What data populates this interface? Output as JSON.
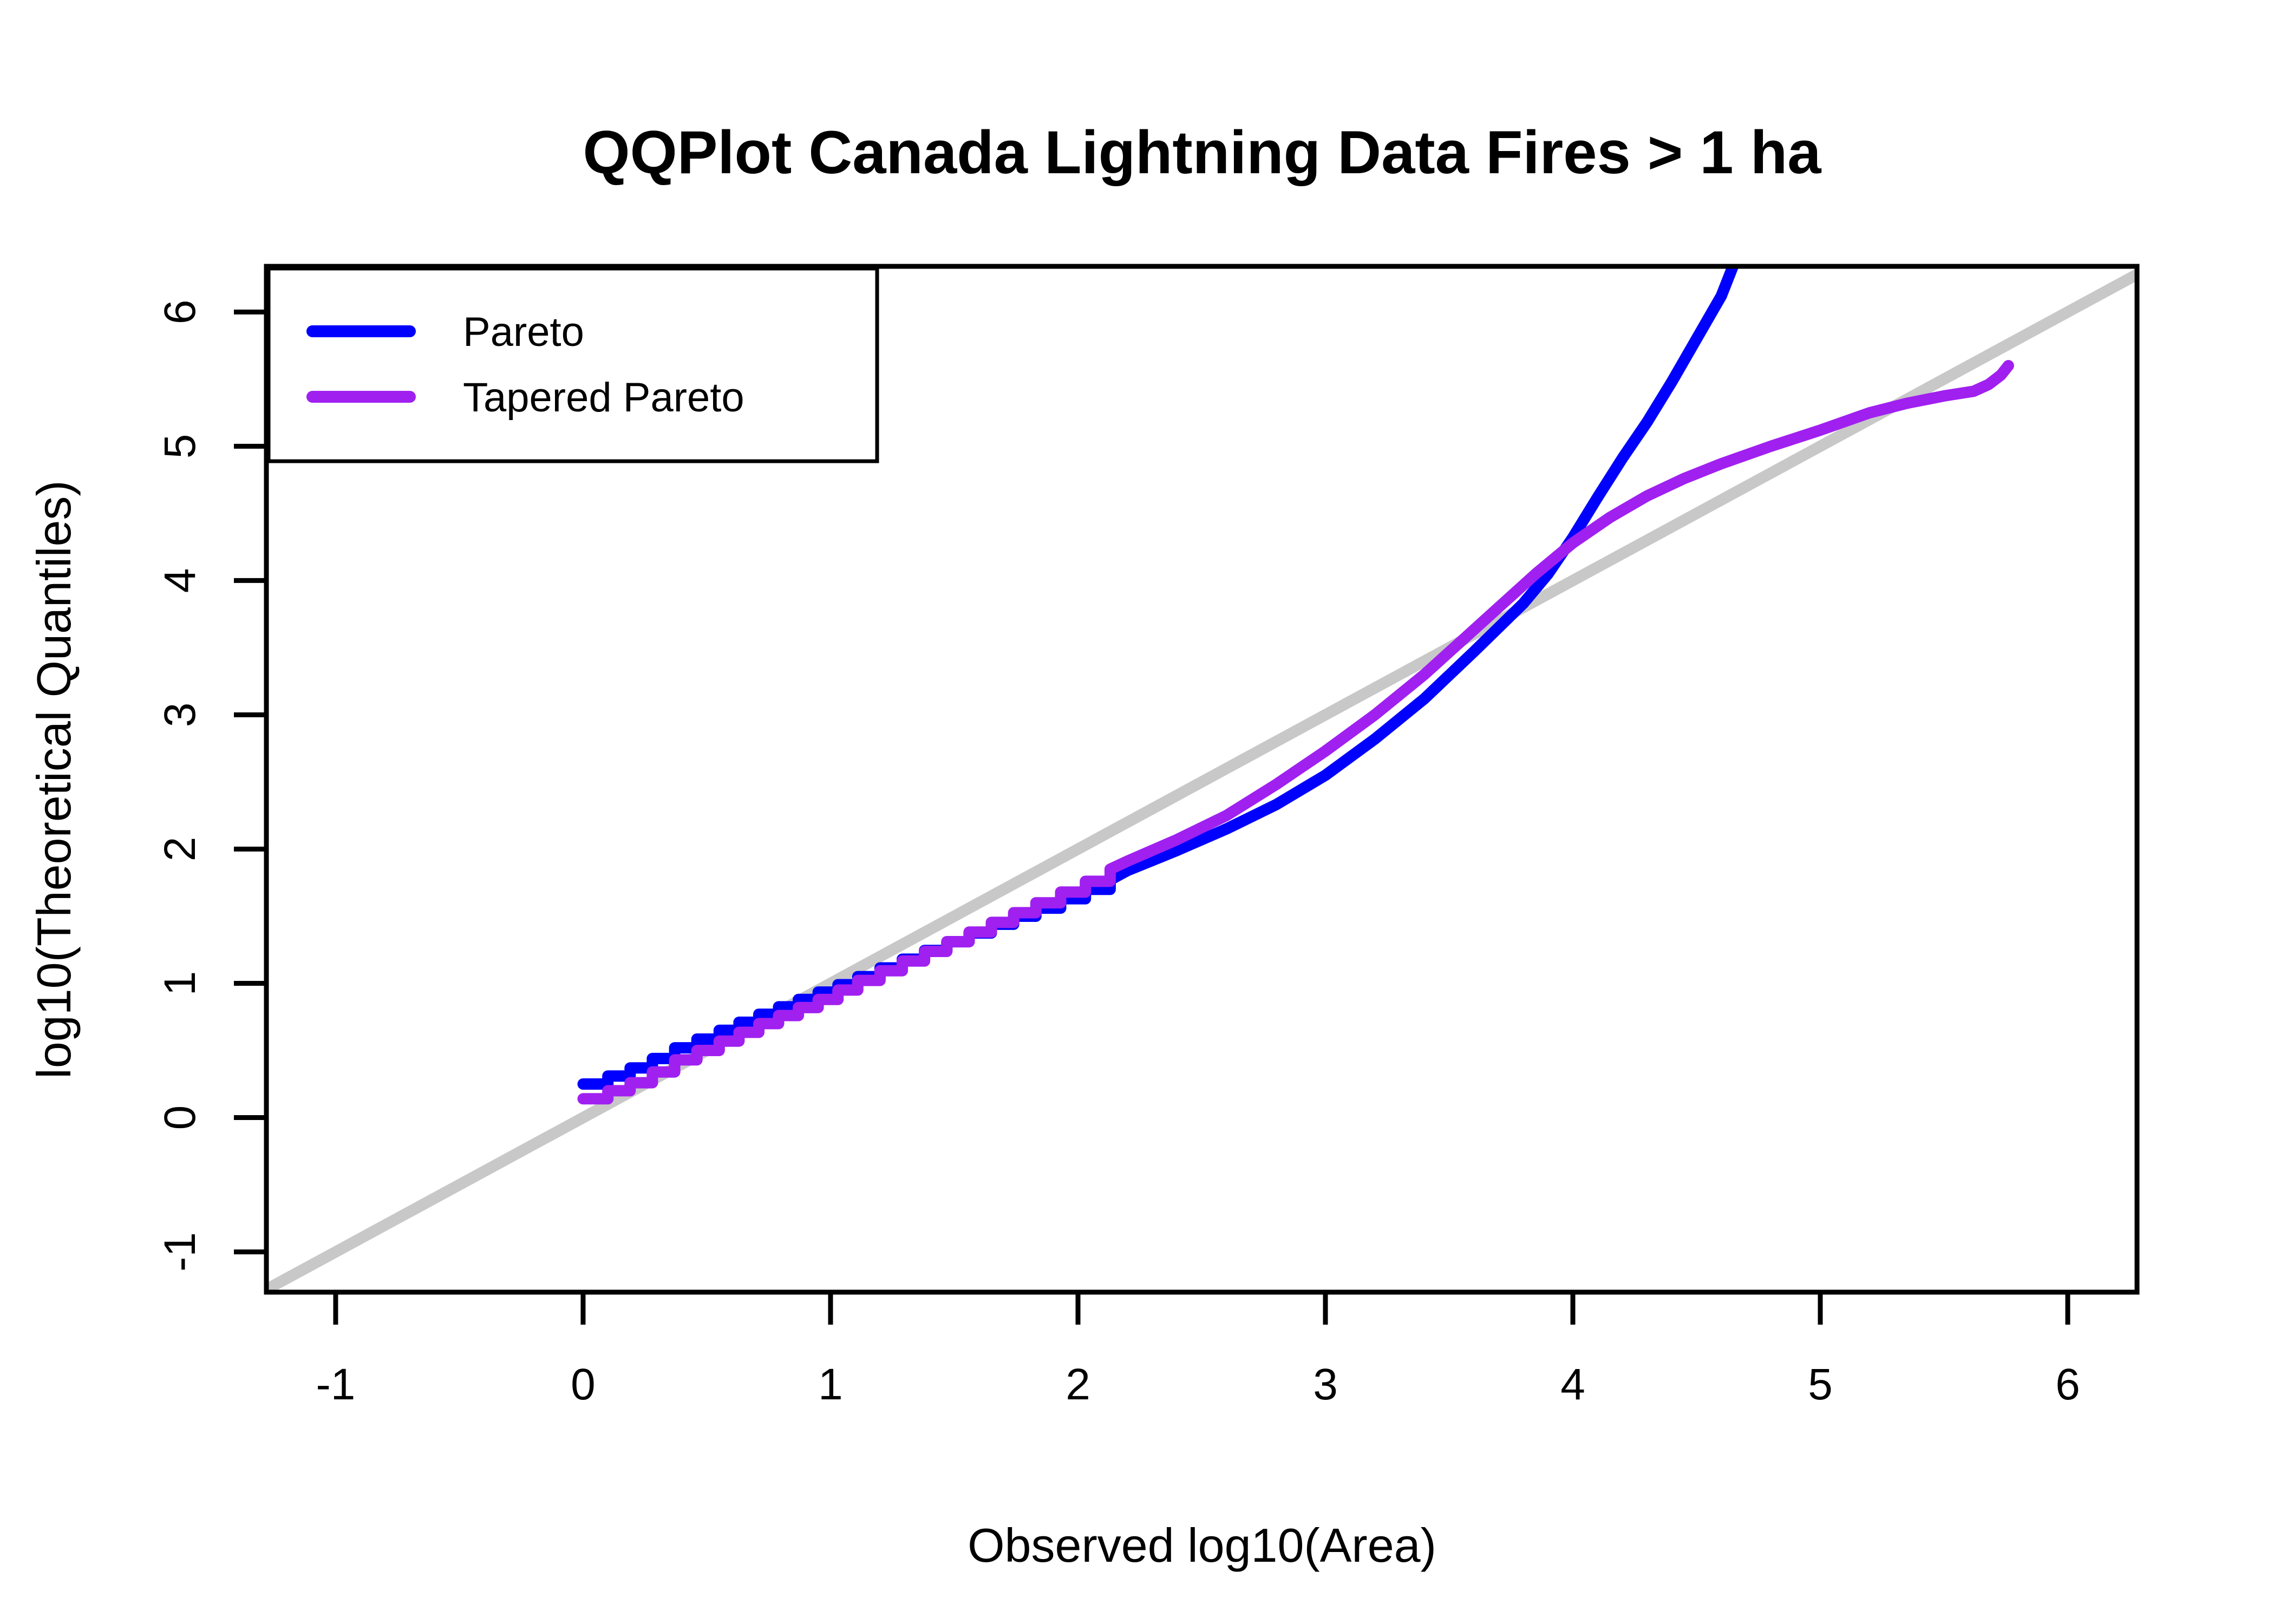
{
  "title": "QQPlot Canada Lightning Data Fires > 1 ha",
  "colors": {
    "pareto": "#0000FF",
    "tapered_pareto": "#A020F0",
    "reference_line": "#C8C8C8",
    "axis": "#000000",
    "background": "#FFFFFF"
  },
  "legend": {
    "position": "top-left",
    "items": [
      {
        "label": "Pareto",
        "color": "#0000FF"
      },
      {
        "label": "Tapered Pareto",
        "color": "#A020F0"
      }
    ]
  },
  "chart_data": {
    "type": "line",
    "title": "QQPlot Canada Lightning Data Fires > 1 ha",
    "xlabel": "Observed log10(Area)",
    "ylabel": "log10(Theoretical Quantiles)",
    "x_ticks": [
      -1,
      0,
      1,
      2,
      3,
      4,
      5,
      6
    ],
    "y_ticks": [
      -1,
      0,
      1,
      2,
      3,
      4,
      5,
      6
    ],
    "xlim": [
      -1.28,
      6.28
    ],
    "ylim": [
      -1.3,
      6.34
    ],
    "grid": false,
    "legend_position": "top-left",
    "reference_line": {
      "label": "y = x",
      "slope": 1,
      "intercept": 0,
      "color": "#C8C8C8"
    },
    "series": [
      {
        "name": "Pareto",
        "color": "#0000FF",
        "points": [
          [
            0.0,
            0.25
          ],
          [
            0.1,
            0.25
          ],
          [
            0.1,
            0.31
          ],
          [
            0.19,
            0.31
          ],
          [
            0.19,
            0.37
          ],
          [
            0.28,
            0.37
          ],
          [
            0.28,
            0.44
          ],
          [
            0.37,
            0.44
          ],
          [
            0.37,
            0.52
          ],
          [
            0.46,
            0.52
          ],
          [
            0.46,
            0.585
          ],
          [
            0.55,
            0.585
          ],
          [
            0.55,
            0.65
          ],
          [
            0.63,
            0.65
          ],
          [
            0.63,
            0.71
          ],
          [
            0.71,
            0.71
          ],
          [
            0.71,
            0.77
          ],
          [
            0.79,
            0.77
          ],
          [
            0.79,
            0.825
          ],
          [
            0.87,
            0.825
          ],
          [
            0.87,
            0.88
          ],
          [
            0.95,
            0.88
          ],
          [
            0.95,
            0.935
          ],
          [
            1.03,
            0.935
          ],
          [
            1.03,
            0.99
          ],
          [
            1.11,
            0.99
          ],
          [
            1.11,
            1.05
          ],
          [
            1.2,
            1.05
          ],
          [
            1.2,
            1.115
          ],
          [
            1.29,
            1.115
          ],
          [
            1.29,
            1.18
          ],
          [
            1.38,
            1.18
          ],
          [
            1.38,
            1.245
          ],
          [
            1.47,
            1.245
          ],
          [
            1.47,
            1.31
          ],
          [
            1.56,
            1.31
          ],
          [
            1.56,
            1.375
          ],
          [
            1.65,
            1.375
          ],
          [
            1.65,
            1.44
          ],
          [
            1.74,
            1.44
          ],
          [
            1.74,
            1.5
          ],
          [
            1.83,
            1.5
          ],
          [
            1.83,
            1.56
          ],
          [
            1.93,
            1.56
          ],
          [
            1.93,
            1.63
          ],
          [
            2.03,
            1.63
          ],
          [
            2.03,
            1.7
          ],
          [
            2.13,
            1.7
          ],
          [
            2.13,
            1.77
          ],
          [
            2.2,
            1.84
          ],
          [
            2.4,
            1.99
          ],
          [
            2.6,
            2.15
          ],
          [
            2.8,
            2.33
          ],
          [
            3.0,
            2.55
          ],
          [
            3.2,
            2.82
          ],
          [
            3.4,
            3.12
          ],
          [
            3.6,
            3.47
          ],
          [
            3.8,
            3.83
          ],
          [
            3.9,
            4.05
          ],
          [
            4.0,
            4.32
          ],
          [
            4.1,
            4.62
          ],
          [
            4.2,
            4.91
          ],
          [
            4.3,
            5.18
          ],
          [
            4.4,
            5.48
          ],
          [
            4.5,
            5.8
          ],
          [
            4.6,
            6.12
          ],
          [
            4.66,
            6.4
          ]
        ]
      },
      {
        "name": "Tapered Pareto",
        "color": "#A020F0",
        "points": [
          [
            0.0,
            0.14
          ],
          [
            0.1,
            0.14
          ],
          [
            0.1,
            0.2
          ],
          [
            0.19,
            0.2
          ],
          [
            0.19,
            0.26
          ],
          [
            0.28,
            0.26
          ],
          [
            0.28,
            0.34
          ],
          [
            0.37,
            0.34
          ],
          [
            0.37,
            0.43
          ],
          [
            0.46,
            0.43
          ],
          [
            0.46,
            0.5
          ],
          [
            0.55,
            0.5
          ],
          [
            0.55,
            0.57
          ],
          [
            0.63,
            0.57
          ],
          [
            0.63,
            0.635
          ],
          [
            0.71,
            0.635
          ],
          [
            0.71,
            0.7
          ],
          [
            0.79,
            0.7
          ],
          [
            0.79,
            0.76
          ],
          [
            0.87,
            0.76
          ],
          [
            0.87,
            0.82
          ],
          [
            0.95,
            0.82
          ],
          [
            0.95,
            0.88
          ],
          [
            1.03,
            0.88
          ],
          [
            1.03,
            0.95
          ],
          [
            1.11,
            0.95
          ],
          [
            1.11,
            1.022
          ],
          [
            1.2,
            1.022
          ],
          [
            1.2,
            1.094
          ],
          [
            1.29,
            1.094
          ],
          [
            1.29,
            1.166
          ],
          [
            1.38,
            1.166
          ],
          [
            1.38,
            1.238
          ],
          [
            1.47,
            1.238
          ],
          [
            1.47,
            1.31
          ],
          [
            1.56,
            1.31
          ],
          [
            1.56,
            1.382
          ],
          [
            1.65,
            1.382
          ],
          [
            1.65,
            1.454
          ],
          [
            1.74,
            1.454
          ],
          [
            1.74,
            1.526
          ],
          [
            1.83,
            1.526
          ],
          [
            1.83,
            1.6
          ],
          [
            1.93,
            1.6
          ],
          [
            1.93,
            1.68
          ],
          [
            2.03,
            1.68
          ],
          [
            2.03,
            1.76
          ],
          [
            2.13,
            1.76
          ],
          [
            2.13,
            1.85
          ],
          [
            2.2,
            1.91
          ],
          [
            2.4,
            2.07
          ],
          [
            2.6,
            2.25
          ],
          [
            2.8,
            2.48
          ],
          [
            3.0,
            2.73
          ],
          [
            3.2,
            3.0
          ],
          [
            3.4,
            3.3
          ],
          [
            3.55,
            3.55
          ],
          [
            3.7,
            3.8
          ],
          [
            3.85,
            4.05
          ],
          [
            4.0,
            4.28
          ],
          [
            4.15,
            4.47
          ],
          [
            4.3,
            4.63
          ],
          [
            4.45,
            4.76
          ],
          [
            4.6,
            4.87
          ],
          [
            4.8,
            5.0
          ],
          [
            5.0,
            5.12
          ],
          [
            5.2,
            5.25
          ],
          [
            5.35,
            5.32
          ],
          [
            5.5,
            5.375
          ],
          [
            5.62,
            5.41
          ],
          [
            5.68,
            5.46
          ],
          [
            5.73,
            5.53
          ],
          [
            5.76,
            5.6
          ]
        ]
      }
    ]
  }
}
